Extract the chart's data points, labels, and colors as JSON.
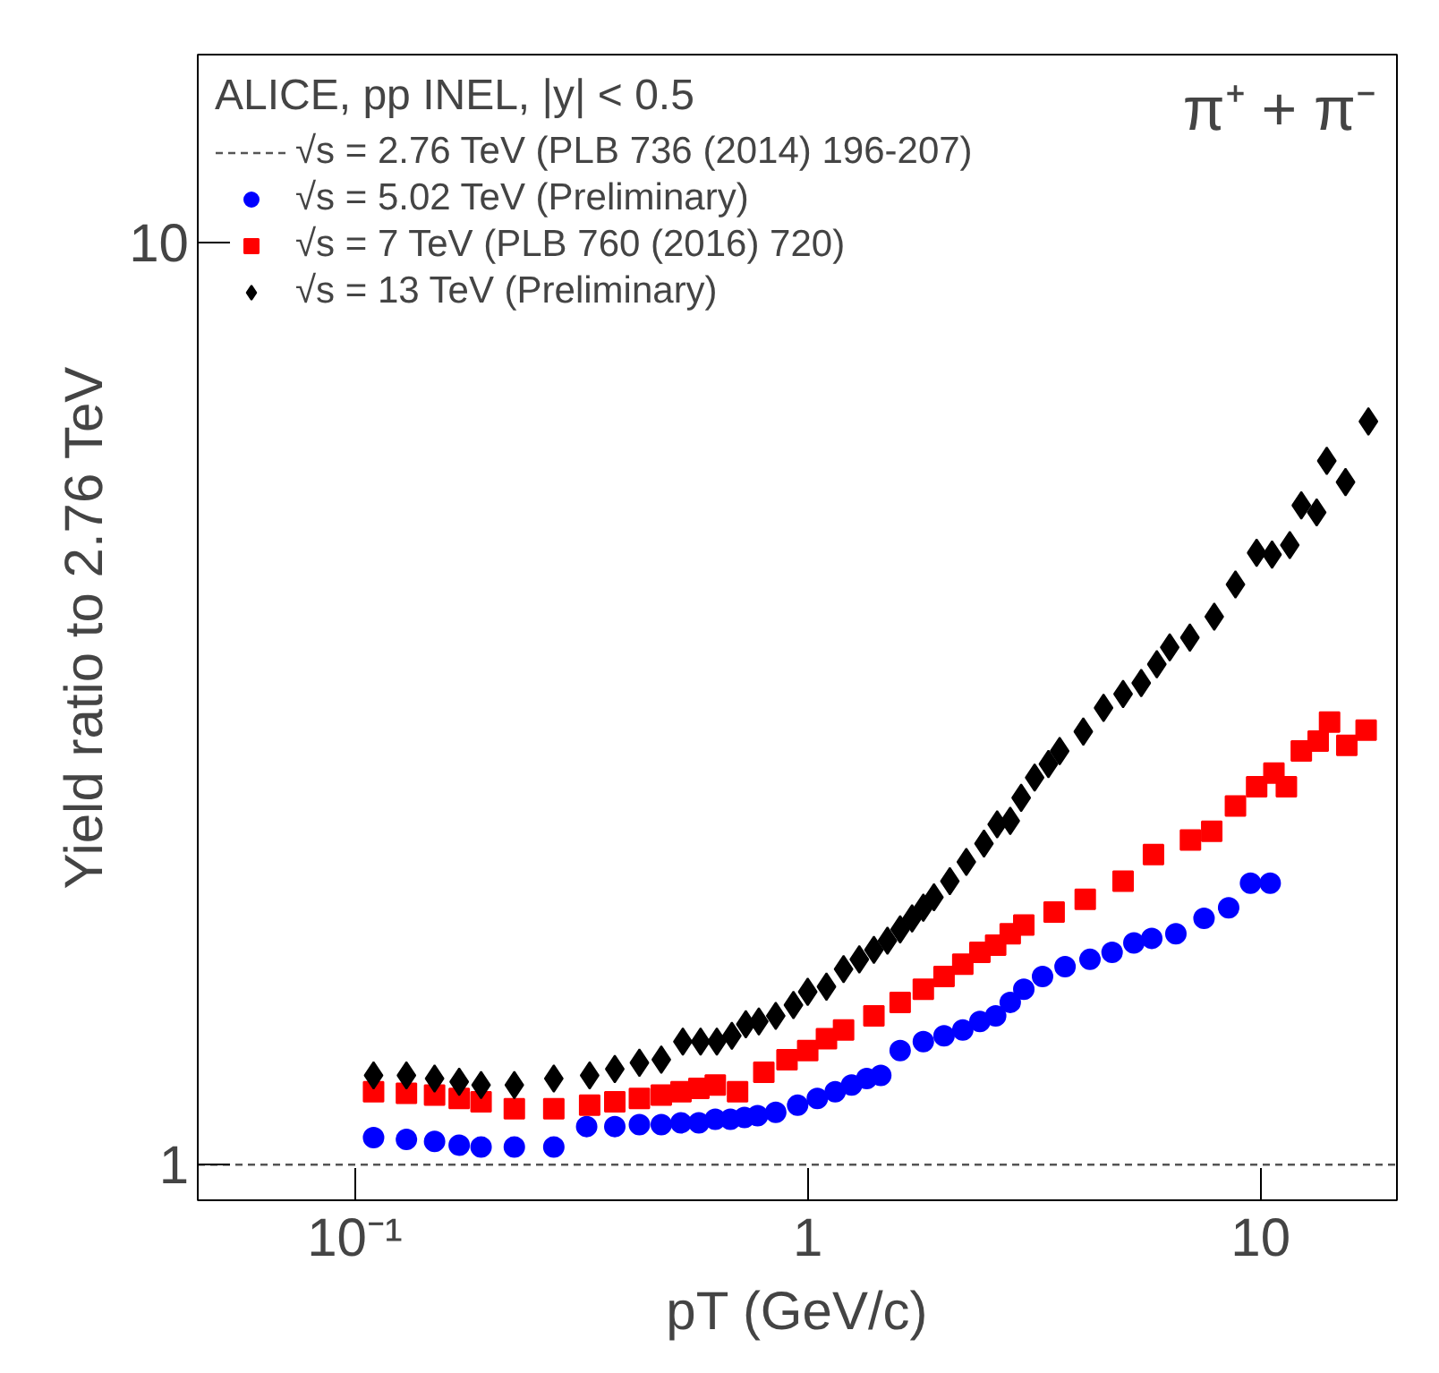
{
  "chart_data": {
    "type": "scatter",
    "xlabel": "pT (GeV/c)",
    "ylabel": "Yield ratio to 2.76 TeV",
    "legend_title": "ALICE, pp INEL, |y| < 0.5",
    "annotations": [
      "π⁺ + π⁻"
    ],
    "log": "xy",
    "grid": false,
    "legend": "top left",
    "xlim": [
      0.045,
      20
    ],
    "ylim": [
      0.915,
      16
    ],
    "xticks": [
      {
        "value": 0.1,
        "label": "10⁻¹"
      },
      1,
      10
    ],
    "yticks": [
      1,
      10
    ],
    "series": [
      {
        "name": "√s = 2.76 TeV (PLB 736 (2014) 196-207)",
        "type": "line",
        "line_style": "dashed",
        "marker": "none",
        "color": "#555555",
        "x": [
          0.045,
          20
        ],
        "values": [
          1,
          1
        ]
      },
      {
        "name": "√s = 5.02 TeV (Preliminary)",
        "marker": "circle",
        "color": "#0000ff",
        "x": [
          0.11,
          0.13,
          0.15,
          0.17,
          0.19,
          0.225,
          0.275,
          0.325,
          0.375,
          0.425,
          0.475,
          0.525,
          0.575,
          0.625,
          0.675,
          0.725,
          0.775,
          0.85,
          0.95,
          1.05,
          1.15,
          1.25,
          1.35,
          1.45,
          1.6,
          1.8,
          2.0,
          2.2,
          2.4,
          2.6,
          2.8,
          3.0,
          3.3,
          3.7,
          4.2,
          4.7,
          5.25,
          5.75,
          6.5,
          7.5,
          8.5,
          9.5,
          10.5
        ],
        "values": [
          1.07,
          1.065,
          1.06,
          1.05,
          1.045,
          1.045,
          1.045,
          1.1,
          1.1,
          1.105,
          1.105,
          1.11,
          1.11,
          1.12,
          1.12,
          1.125,
          1.13,
          1.14,
          1.16,
          1.18,
          1.2,
          1.22,
          1.24,
          1.25,
          1.33,
          1.36,
          1.38,
          1.4,
          1.43,
          1.45,
          1.5,
          1.55,
          1.6,
          1.64,
          1.67,
          1.7,
          1.74,
          1.76,
          1.78,
          1.85,
          1.9,
          2.02,
          2.02
        ]
      },
      {
        "name": "√s = 7 TeV (PLB 760 (2016) 720)",
        "marker": "square",
        "color": "#ff0000",
        "x": [
          0.11,
          0.13,
          0.15,
          0.17,
          0.19,
          0.225,
          0.275,
          0.33,
          0.375,
          0.425,
          0.475,
          0.525,
          0.575,
          0.625,
          0.7,
          0.8,
          0.9,
          1.0,
          1.1,
          1.2,
          1.4,
          1.6,
          1.8,
          2.0,
          2.2,
          2.4,
          2.6,
          2.8,
          3.0,
          3.5,
          4.1,
          4.97,
          5.8,
          7.0,
          7.8,
          8.8,
          9.8,
          10.7,
          11.4,
          12.3,
          13.4,
          14.2,
          15.5,
          17.1
        ],
        "values": [
          1.2,
          1.195,
          1.19,
          1.18,
          1.17,
          1.15,
          1.15,
          1.16,
          1.17,
          1.18,
          1.19,
          1.2,
          1.21,
          1.22,
          1.2,
          1.26,
          1.3,
          1.33,
          1.37,
          1.4,
          1.45,
          1.5,
          1.55,
          1.6,
          1.65,
          1.7,
          1.73,
          1.78,
          1.82,
          1.88,
          1.94,
          2.03,
          2.17,
          2.25,
          2.3,
          2.45,
          2.57,
          2.66,
          2.57,
          2.81,
          2.88,
          3.02,
          2.85,
          2.96
        ]
      },
      {
        "name": "√s = 13 TeV (Preliminary)",
        "marker": "diamond",
        "color": "#000000",
        "x": [
          0.11,
          0.13,
          0.15,
          0.17,
          0.19,
          0.225,
          0.275,
          0.33,
          0.375,
          0.425,
          0.475,
          0.53,
          0.58,
          0.63,
          0.68,
          0.73,
          0.78,
          0.85,
          0.93,
          1.0,
          1.1,
          1.2,
          1.3,
          1.4,
          1.5,
          1.6,
          1.7,
          1.8,
          1.9,
          2.06,
          2.24,
          2.45,
          2.62,
          2.8,
          2.96,
          3.17,
          3.4,
          3.6,
          4.06,
          4.5,
          4.97,
          5.45,
          5.9,
          6.3,
          6.98,
          7.9,
          8.8,
          9.8,
          10.6,
          11.6,
          12.3,
          13.3,
          14.0,
          15.4,
          17.3
        ],
        "values": [
          1.25,
          1.25,
          1.24,
          1.23,
          1.22,
          1.22,
          1.24,
          1.25,
          1.27,
          1.29,
          1.3,
          1.36,
          1.36,
          1.36,
          1.38,
          1.42,
          1.43,
          1.45,
          1.49,
          1.54,
          1.56,
          1.63,
          1.67,
          1.71,
          1.75,
          1.8,
          1.85,
          1.9,
          1.95,
          2.03,
          2.13,
          2.23,
          2.34,
          2.36,
          2.5,
          2.63,
          2.72,
          2.81,
          2.95,
          3.13,
          3.24,
          3.33,
          3.49,
          3.64,
          3.73,
          3.93,
          4.26,
          4.61,
          4.59,
          4.7,
          5.19,
          5.1,
          5.8,
          5.5,
          6.4
        ]
      }
    ]
  }
}
